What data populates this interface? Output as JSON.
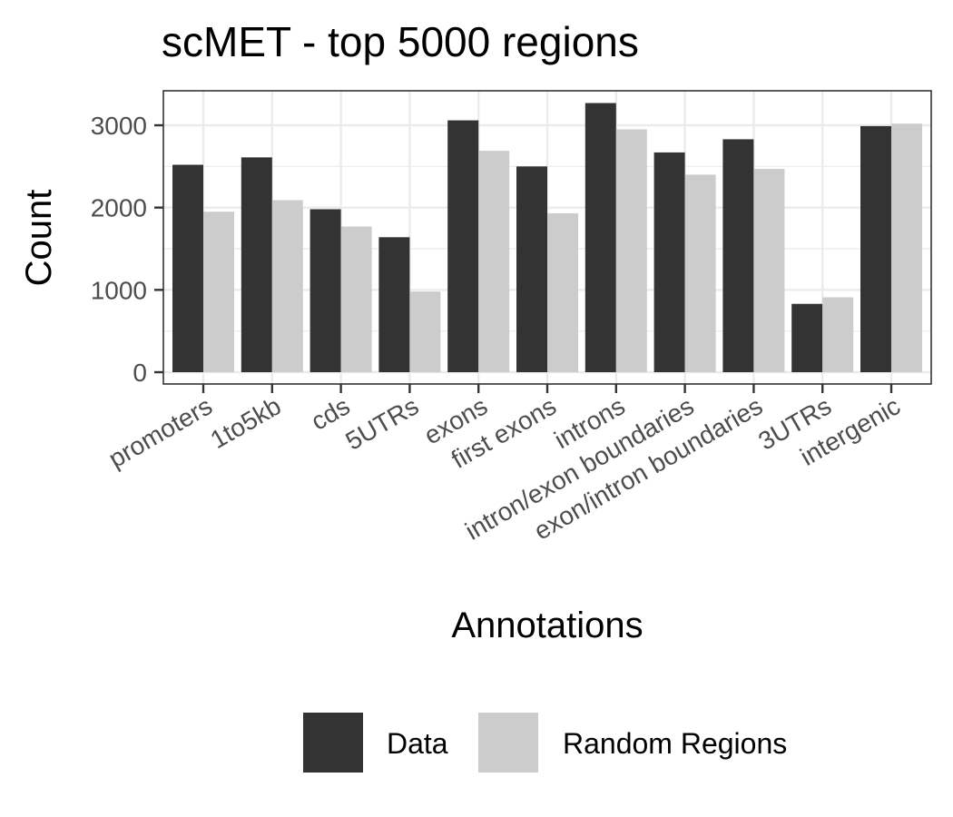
{
  "chart_data": {
    "type": "bar",
    "title": "scMET - top 5000 regions",
    "xlabel": "Annotations",
    "ylabel": "Count",
    "ylim": [
      0,
      3400
    ],
    "yticks": [
      0,
      1000,
      2000,
      3000
    ],
    "grid": true,
    "legend_position": "bottom",
    "categories": [
      "promoters",
      "1to5kb",
      "cds",
      "5UTRs",
      "exons",
      "first exons",
      "introns",
      "intron/exon boundaries",
      "exon/intron boundaries",
      "3UTRs",
      "intergenic"
    ],
    "series": [
      {
        "name": "Data",
        "color": "#333333",
        "values": [
          2520,
          2610,
          1980,
          1640,
          3060,
          2500,
          3270,
          2670,
          2830,
          830,
          2990
        ]
      },
      {
        "name": "Random Regions",
        "color": "#cccccc",
        "values": [
          1950,
          2090,
          1770,
          980,
          2690,
          1930,
          2950,
          2400,
          2470,
          910,
          3020
        ]
      }
    ]
  }
}
